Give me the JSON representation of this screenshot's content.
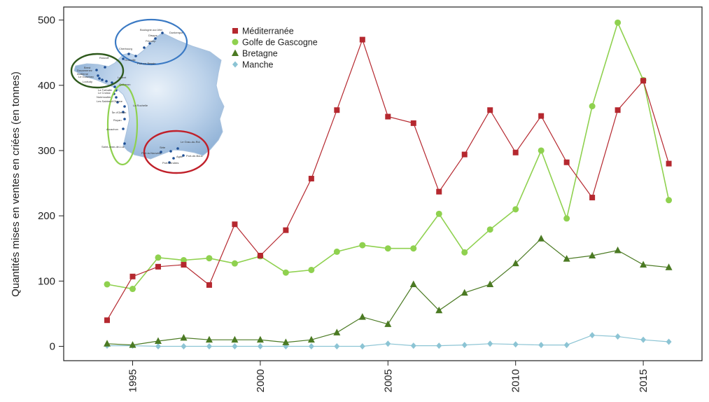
{
  "chart_data": {
    "type": "line",
    "ylabel": "Quantités mises en ventes en criées (en tonnes)",
    "xlabel": "",
    "title": "",
    "xlim": [
      1992.3,
      2017.3
    ],
    "ylim": [
      -22,
      520
    ],
    "x_ticks": [
      1995,
      2000,
      2005,
      2010,
      2015
    ],
    "y_ticks": [
      0,
      100,
      200,
      300,
      400,
      500
    ],
    "legend_position": "top-center",
    "x": [
      1994,
      1995,
      1996,
      1997,
      1998,
      1999,
      2000,
      2001,
      2002,
      2003,
      2004,
      2005,
      2006,
      2007,
      2008,
      2009,
      2010,
      2011,
      2012,
      2013,
      2014,
      2015,
      2016
    ],
    "series": [
      {
        "name": "Méditerranée",
        "color": "#b5282f",
        "marker": "square",
        "values": [
          40,
          107,
          122,
          125,
          94,
          187,
          139,
          178,
          257,
          362,
          470,
          352,
          342,
          237,
          294,
          362,
          297,
          353,
          282,
          228,
          362,
          407,
          280
        ]
      },
      {
        "name": "Golfe de Gascogne",
        "color": "#8fd14f",
        "marker": "circle",
        "values": [
          95,
          88,
          136,
          132,
          135,
          127,
          138,
          113,
          117,
          145,
          155,
          150,
          150,
          203,
          144,
          179,
          210,
          300,
          196,
          368,
          496,
          408,
          224
        ]
      },
      {
        "name": "Bretagne",
        "color": "#4b7a23",
        "marker": "triangle",
        "values": [
          4,
          2,
          8,
          13,
          10,
          10,
          10,
          6,
          10,
          21,
          45,
          34,
          95,
          55,
          82,
          95,
          127,
          165,
          134,
          139,
          147,
          125,
          121
        ]
      },
      {
        "name": "Manche",
        "color": "#8cc4d4",
        "marker": "diamond",
        "values": [
          1,
          1,
          0,
          0,
          0,
          0,
          0,
          0,
          0,
          0,
          0,
          4,
          1,
          1,
          2,
          4,
          3,
          2,
          2,
          17,
          15,
          10,
          7
        ]
      }
    ]
  },
  "inset_map": {
    "labels": [
      "Dunkerque",
      "Boulogne-sur-Mer",
      "Dieppe",
      "Fécamp",
      "Cherbourg",
      "Port-en-Bessin",
      "Granville",
      "Roscoff",
      "Brest",
      "Douarnenez",
      "Audierne",
      "Le Guilvinec",
      "Loctudy",
      "Lorient",
      "Quiberon",
      "La Turballe",
      "Le Croisic",
      "Noirmoutier",
      "Les Sables-d'Olonne",
      "La Rochelle",
      "Île d'Oléron",
      "Royan",
      "Arcachon",
      "Saint-Jean-de-Luz",
      "Port-la-Nouvelle",
      "Sète",
      "Le Grau-du-Roi",
      "Agde",
      "Port-Vendres",
      "Port-de-Bouc"
    ]
  }
}
